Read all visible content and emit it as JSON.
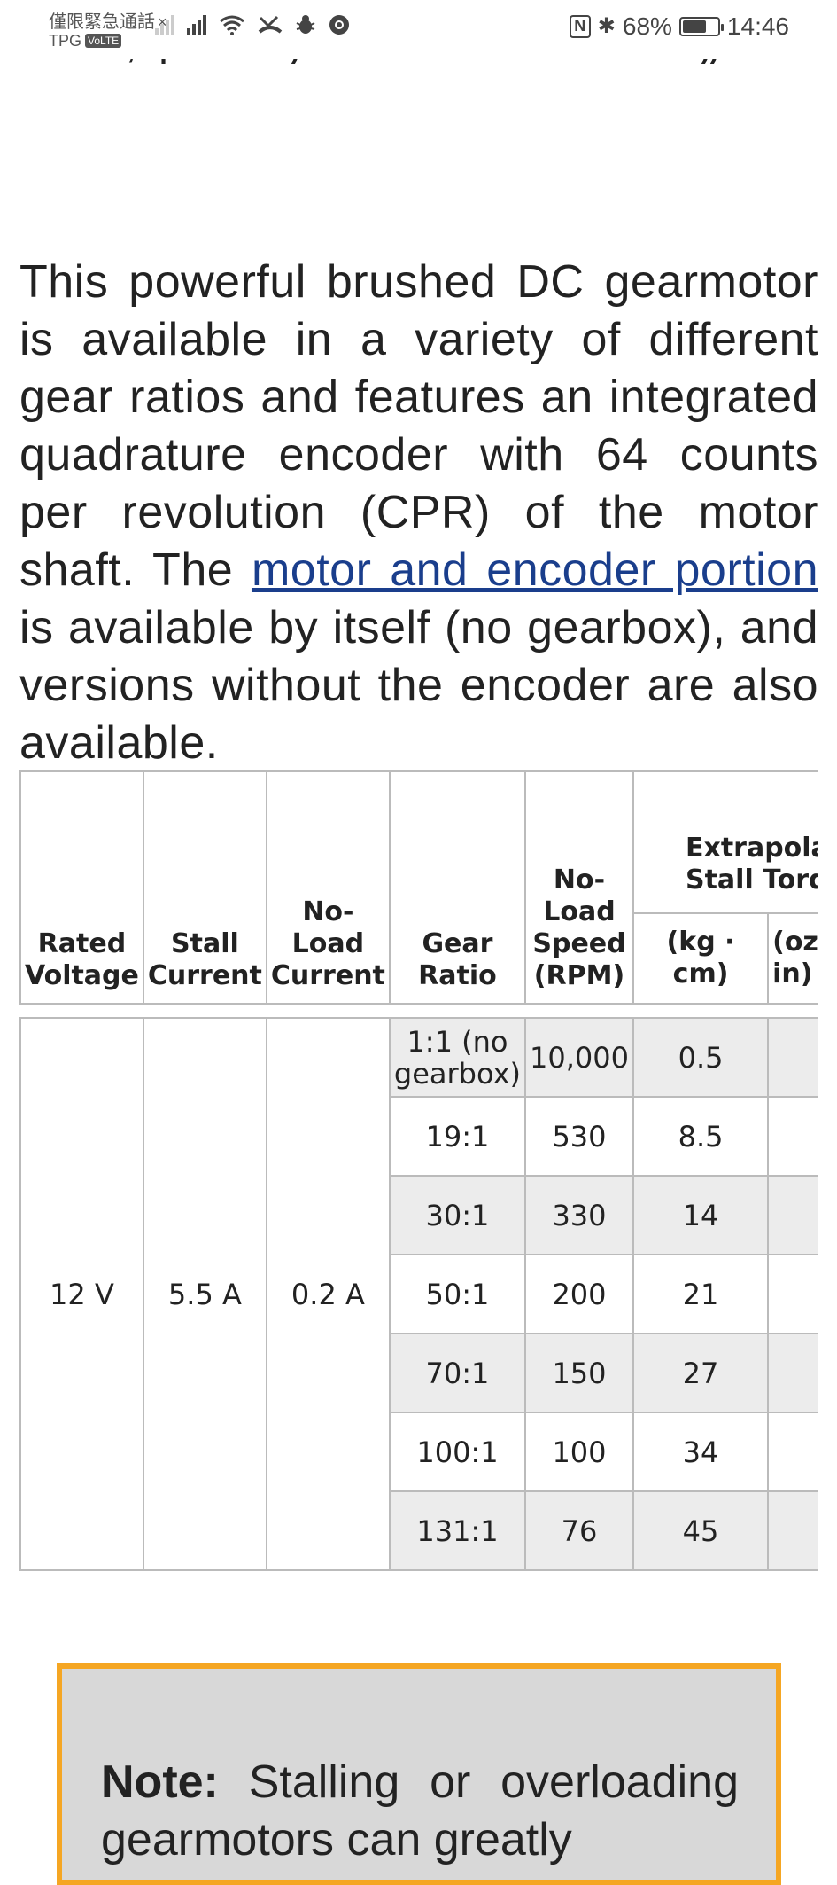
{
  "status_bar": {
    "carrier_line1": "僅限緊急通話",
    "carrier_line2": "TPG",
    "volte_badge": "VoLTE",
    "close_glyph": "×",
    "icons": [
      "signal-dim-icon",
      "signal-icon",
      "wifi-icon",
      "missed-call-icon",
      "bug-icon",
      "chrome-icon",
      "nfc-icon",
      "bluetooth-icon"
    ],
    "nfc_glyph": "N",
    "bluetooth_glyph": "✱",
    "battery_pct_text": "68%",
    "battery_level": 0.68,
    "time": "14:46"
  },
  "cut_off_text": {
    "left": "Gearbox, Spur Pinion):",
    "right": "Helical Pinion))"
  },
  "intro": {
    "before_link": "This powerful brushed DC gearmotor is available in a variety of different gear ratios and features an integrated quadrature encoder with 64 counts per revolution (CPR) of the motor shaft. The ",
    "link_text": "motor and encoder portion",
    "after_link": " is available by itself (no gearbox), and versions without the encoder are also available."
  },
  "table": {
    "headers": {
      "rated_voltage": "Rated Voltage",
      "stall_current": "Stall Current",
      "no_load_current": "No-Load Current",
      "gear_ratio": "Gear Ratio",
      "no_load_speed": "No-Load Speed (RPM)",
      "stall_torque_group": "Extrapolated Stall Torque",
      "stall_torque_kgcm": "(kg · cm)",
      "stall_torque_other": "(oz · in)"
    },
    "merged": {
      "rated_voltage": "12 V",
      "stall_current": "5.5 A",
      "no_load_current": "0.2 A"
    },
    "rows": [
      {
        "gear_ratio": "1:1 (no gearbox)",
        "speed": "10,000",
        "torque_kgcm": "0.5"
      },
      {
        "gear_ratio": "19:1",
        "speed": "530",
        "torque_kgcm": "8.5"
      },
      {
        "gear_ratio": "30:1",
        "speed": "330",
        "torque_kgcm": "14"
      },
      {
        "gear_ratio": "50:1",
        "speed": "200",
        "torque_kgcm": "21"
      },
      {
        "gear_ratio": "70:1",
        "speed": "150",
        "torque_kgcm": "27"
      },
      {
        "gear_ratio": "100:1",
        "speed": "100",
        "torque_kgcm": "34"
      },
      {
        "gear_ratio": "131:1",
        "speed": "76",
        "torque_kgcm": "45"
      }
    ]
  },
  "note": {
    "label": "Note:",
    "text": " Stalling or overloading gearmotors can greatly"
  },
  "colors": {
    "link": "#1a3e8c",
    "note_border": "#f5a623",
    "note_bg": "#d8d8d8",
    "row_shade": "#ececec"
  }
}
